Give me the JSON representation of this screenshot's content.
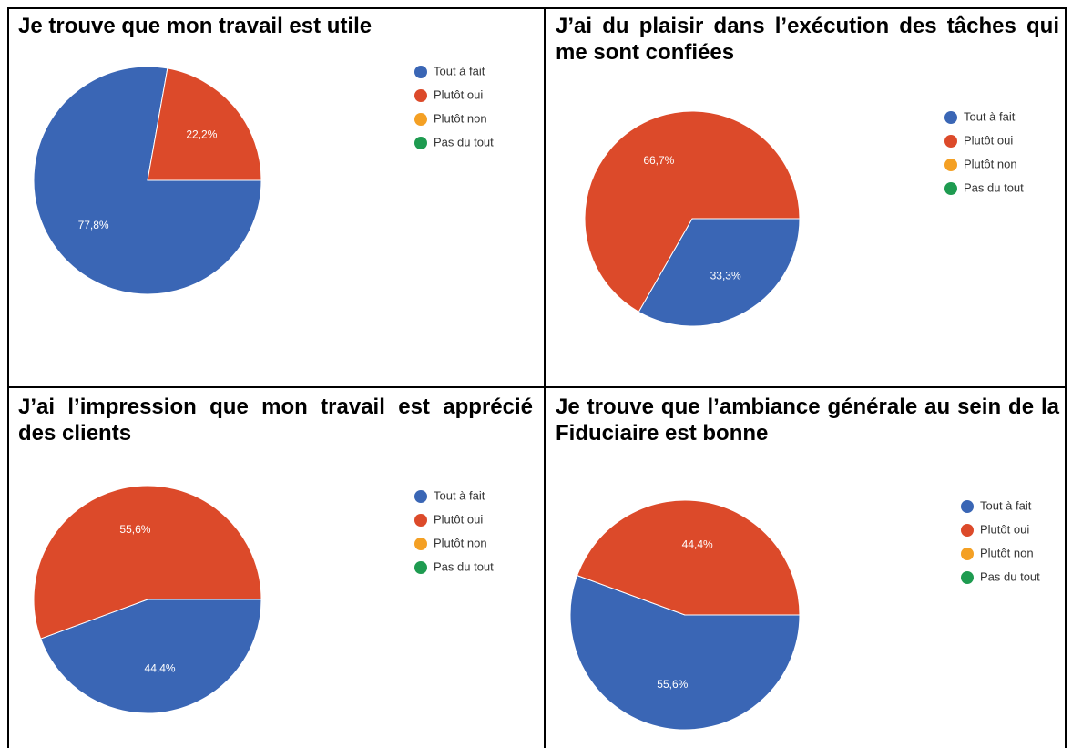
{
  "chart_data": [
    {
      "type": "pie",
      "title": "Je trouve que mon travail est utile",
      "categories": [
        "Tout à fait",
        "Plutôt oui",
        "Plutôt non",
        "Pas du tout"
      ],
      "values": [
        77.8,
        22.2,
        0,
        0
      ],
      "value_labels": [
        "77,8%",
        "22,2%",
        null,
        null
      ],
      "colors": [
        "#3a66b5",
        "#dc4a2a",
        "#f4a024",
        "#1e9b50"
      ]
    },
    {
      "type": "pie",
      "title": "J’ai du plaisir dans l’exécution des tâches qui me sont confiées",
      "categories": [
        "Tout à fait",
        "Plutôt oui",
        "Plutôt non",
        "Pas du tout"
      ],
      "values": [
        33.3,
        66.7,
        0,
        0
      ],
      "value_labels": [
        "33,3%",
        "66,7%",
        null,
        null
      ],
      "colors": [
        "#3a66b5",
        "#dc4a2a",
        "#f4a024",
        "#1e9b50"
      ]
    },
    {
      "type": "pie",
      "title": "J’ai l’impression que mon travail est apprécié des clients",
      "categories": [
        "Tout à fait",
        "Plutôt oui",
        "Plutôt non",
        "Pas du tout"
      ],
      "values": [
        44.4,
        55.6,
        0,
        0
      ],
      "value_labels": [
        "44,4%",
        "55,6%",
        null,
        null
      ],
      "colors": [
        "#3a66b5",
        "#dc4a2a",
        "#f4a024",
        "#1e9b50"
      ]
    },
    {
      "type": "pie",
      "title": "Je trouve que l’ambiance générale au sein de la Fiduciaire est bonne",
      "categories": [
        "Tout à fait",
        "Plutôt oui",
        "Plutôt non",
        "Pas du tout"
      ],
      "values": [
        55.6,
        44.4,
        0,
        0
      ],
      "value_labels": [
        "55,6%",
        "44,4%",
        null,
        null
      ],
      "colors": [
        "#3a66b5",
        "#dc4a2a",
        "#f4a024",
        "#1e9b50"
      ]
    }
  ]
}
